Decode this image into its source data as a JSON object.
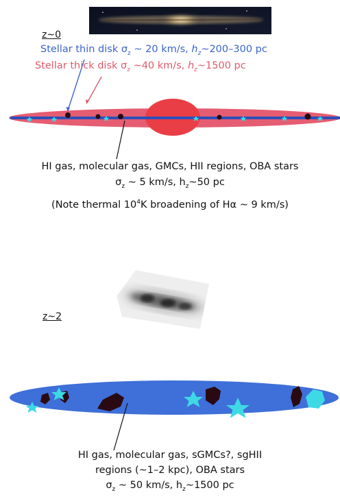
{
  "top": {
    "redshift_label": "z~0",
    "thin_disk": {
      "prefix": "Stellar thin disk ",
      "sigma": "σ",
      "sub": "z",
      "mid": " ~ 20 km/s, ",
      "h": "h",
      "hsub": "z",
      "suffix": "~200–300 pc"
    },
    "thick_disk": {
      "prefix": "Stellar thick disk ",
      "sigma": "σ",
      "sub": "z",
      "mid": " ~40 km/s, ",
      "h": "h",
      "hsub": "z",
      "suffix": "~1500 pc"
    },
    "gas_caption": {
      "line1": "HI gas, molecular gas, GMCs, HII regions, OBA stars",
      "line2_sigma": "σ",
      "line2_sub": "z",
      "line2_rest": " ~ 5 km/s, h",
      "line2_hsub": "z",
      "line2_end": "~50 pc",
      "line3_prefix": "(Note thermal 10",
      "line3_sup": "4",
      "line3_mid": "K broadening of H",
      "line3_alpha": "α",
      "line3_end": " ~ 9 km/s)"
    }
  },
  "bottom": {
    "redshift_label": "z~2",
    "caption": {
      "line1": "HI gas, molecular gas, sGMCs?, sgHII",
      "line2": "regions (~1–2 kpc), OBA stars",
      "line3_sigma": "σ",
      "line3_sub": "z",
      "line3_rest": " ~ 50 km/s, h",
      "line3_hsub": "z",
      "line3_end": "~1500 pc"
    }
  },
  "colors": {
    "thin_disk_text": "#3a64c8",
    "thick_disk_text": "#e05a6a",
    "thick_disk_fill": "#e4546a",
    "bulge_fill": "#ea3e46",
    "thin_disk_line": "#2e4fb8",
    "star_fill": "#3fd9e6",
    "cloud_fill": "#2a0a12",
    "z2_disk_fill": "#3f6fd8"
  }
}
